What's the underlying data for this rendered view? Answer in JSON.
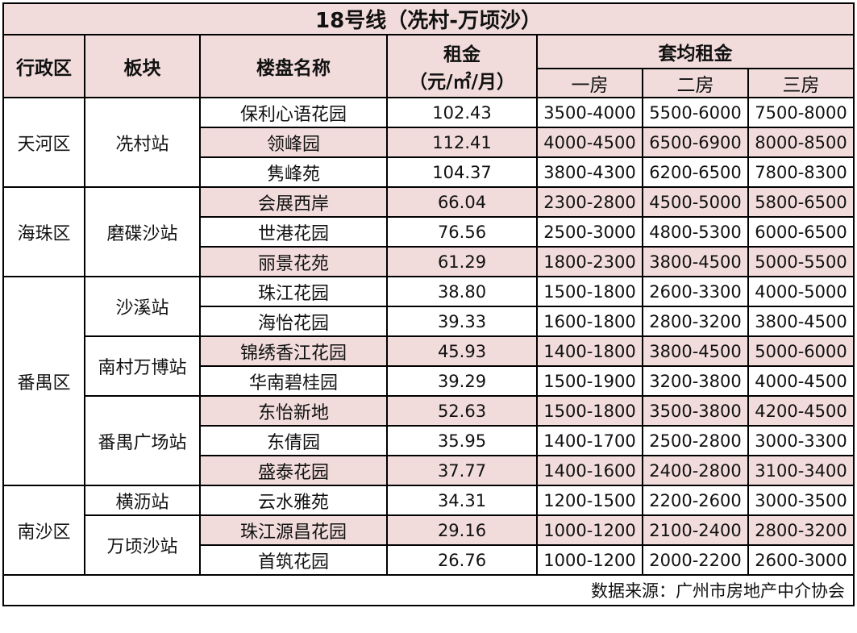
{
  "title": "18号线（冼村-万顷沙）",
  "headers": {
    "district": "行政区",
    "block": "板块",
    "estate": "楼盘名称",
    "rent_line1": "租金",
    "rent_line2": "（元/㎡/月）",
    "avg_rent": "套均租金",
    "one": "一房",
    "two": "二房",
    "three": "三房"
  },
  "rows": [
    {
      "district": "天河区",
      "block": "冼村站",
      "estate": "保利心语花园",
      "rent": "102.43",
      "one": "3500-4000",
      "two": "5500-6000",
      "three": "7500-8000"
    },
    {
      "estate": "领峰园",
      "rent": "112.41",
      "one": "4000-4500",
      "two": "6500-6900",
      "three": "8000-8500"
    },
    {
      "estate": "隽峰苑",
      "rent": "104.37",
      "one": "3800-4300",
      "two": "6200-6500",
      "three": "7800-8300"
    },
    {
      "district": "海珠区",
      "block": "磨碟沙站",
      "estate": "会展西岸",
      "rent": "66.04",
      "one": "2300-2800",
      "two": "4500-5000",
      "three": "5800-6500"
    },
    {
      "estate": "世港花园",
      "rent": "76.56",
      "one": "2500-3000",
      "two": "4800-5300",
      "three": "6000-6500"
    },
    {
      "estate": "丽景花苑",
      "rent": "61.29",
      "one": "1800-2300",
      "two": "3800-4500",
      "three": "5000-5500"
    },
    {
      "district": "番禺区",
      "block": "沙溪站",
      "estate": "珠江花园",
      "rent": "38.80",
      "one": "1500-1800",
      "two": "2600-3300",
      "three": "4000-5000"
    },
    {
      "estate": "海怡花园",
      "rent": "39.33",
      "one": "1600-1800",
      "two": "2800-3200",
      "three": "3800-4500"
    },
    {
      "block": "南村万博站",
      "estate": "锦绣香江花园",
      "rent": "45.93",
      "one": "1400-1800",
      "two": "3800-4500",
      "three": "5000-6000"
    },
    {
      "estate": "华南碧桂园",
      "rent": "39.29",
      "one": "1500-1900",
      "two": "3200-3800",
      "three": "4000-4500"
    },
    {
      "block": "番禺广场站",
      "estate": "东怡新地",
      "rent": "52.63",
      "one": "1500-1800",
      "two": "3500-3800",
      "three": "4200-4500"
    },
    {
      "estate": "东倩园",
      "rent": "35.95",
      "one": "1400-1700",
      "two": "2500-2800",
      "three": "3000-3300"
    },
    {
      "estate": "盛泰花园",
      "rent": "37.77",
      "one": "1400-1600",
      "two": "2400-2800",
      "three": "3100-3400"
    },
    {
      "district": "南沙区",
      "block": "横沥站",
      "estate": "云水雅苑",
      "rent": "34.31",
      "one": "1200-1500",
      "two": "2200-2600",
      "three": "3000-3500"
    },
    {
      "block": "万顷沙站",
      "estate": "珠江源昌花园",
      "rent": "29.16",
      "one": "1000-1200",
      "two": "2100-2400",
      "three": "2800-3200"
    },
    {
      "estate": "首筑花园",
      "rent": "26.76",
      "one": "1000-1200",
      "two": "2000-2200",
      "three": "2600-3000"
    }
  ],
  "source": "数据来源：广州市房地产中介协会",
  "colors": {
    "band": "#f1dcdb",
    "border": "#000000"
  }
}
